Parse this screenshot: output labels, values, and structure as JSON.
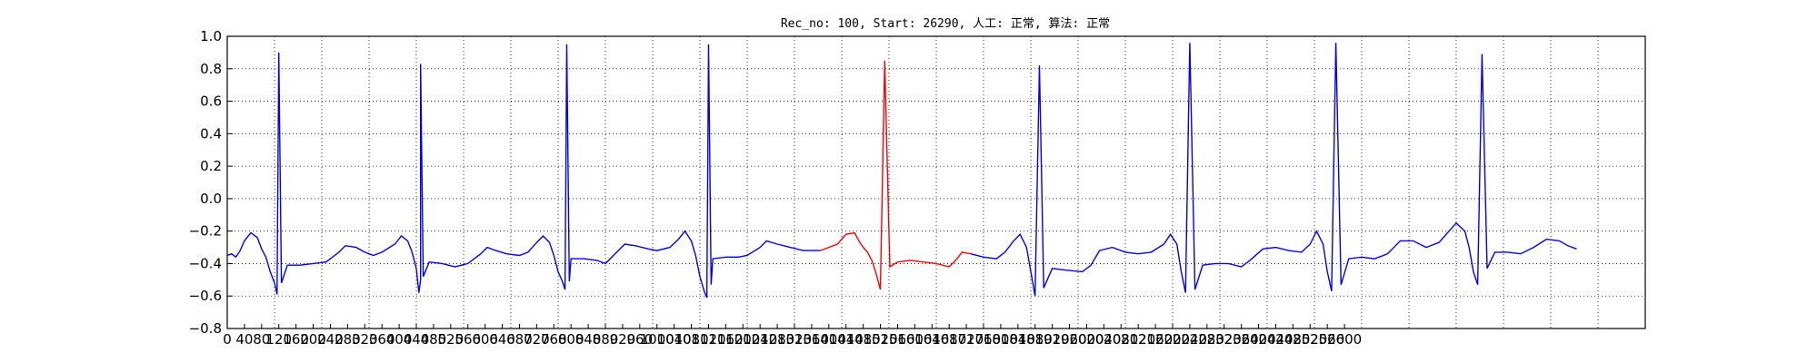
{
  "chart_data": {
    "type": "line",
    "title": "Rec_no: 100, Start: 26290, 人工: 正常, 算法: 正常",
    "xlabel": "",
    "ylabel": "",
    "xlim": [
      0,
      3300
    ],
    "ylim": [
      -0.8,
      1.0
    ],
    "grid": true,
    "y_ticks": [
      "−0.8",
      "−0.6",
      "−0.4",
      "−0.2",
      "0.0",
      "0.2",
      "0.4",
      "0.6",
      "0.8",
      "1.0"
    ],
    "x_ticks": [
      "0",
      "40",
      "80",
      "120",
      "160",
      "200",
      "240",
      "280",
      "320",
      "360",
      "400",
      "440",
      "480",
      "520",
      "560",
      "600",
      "640",
      "680",
      "720",
      "760",
      "800",
      "840",
      "880",
      "920",
      "960",
      "1000",
      "1040",
      "1080",
      "1120",
      "1160",
      "1200",
      "1240",
      "1280",
      "1320",
      "1360",
      "1400",
      "1440",
      "1480",
      "1520",
      "1560",
      "1600",
      "1640",
      "1680",
      "1720",
      "1760",
      "1800",
      "1840",
      "1880",
      "1920",
      "1960",
      "2000",
      "2040",
      "2080",
      "2120",
      "2160",
      "2200",
      "2240",
      "2280",
      "2320",
      "2360",
      "2400",
      "2440",
      "2480",
      "2520",
      "2560",
      "2600"
    ],
    "x_tick_values": [
      0,
      40,
      80,
      120,
      160,
      200,
      240,
      280,
      320,
      360,
      400,
      440,
      480,
      520,
      560,
      600,
      640,
      680,
      720,
      760,
      800,
      840,
      880,
      920,
      960,
      1000,
      1040,
      1080,
      1120,
      1160,
      1200,
      1240,
      1280,
      1320,
      1360,
      1400,
      1440,
      1480,
      1520,
      1560,
      1600,
      1640,
      1680,
      1720,
      1760,
      1800,
      1840,
      1880,
      1920,
      1960,
      2000,
      2040,
      2080,
      2120,
      2160,
      2200,
      2240,
      2280,
      2320,
      2360,
      2400,
      2440,
      2480,
      2520,
      2560,
      2600
    ],
    "x_gridlines": [
      0,
      110,
      220,
      330,
      440,
      550,
      660,
      770,
      880,
      990,
      1100,
      1210,
      1320,
      1430,
      1540,
      1650,
      1760,
      1870,
      1980,
      2090,
      2200,
      2310,
      2420,
      2530,
      2640,
      2750,
      2860,
      2970,
      3080,
      3190,
      3300
    ],
    "baseline": [
      [
        0,
        -0.35
      ],
      [
        10,
        -0.34
      ],
      [
        20,
        -0.36
      ],
      [
        30,
        -0.32
      ],
      [
        40,
        -0.26
      ],
      [
        55,
        -0.21
      ],
      [
        70,
        -0.24
      ],
      [
        80,
        -0.31
      ],
      [
        90,
        -0.36
      ],
      [
        100,
        -0.45
      ],
      [
        110,
        -0.52
      ],
      [
        140,
        -0.41
      ],
      [
        170,
        -0.41
      ],
      [
        200,
        -0.4
      ],
      [
        230,
        -0.39
      ],
      [
        260,
        -0.33
      ],
      [
        275,
        -0.29
      ],
      [
        300,
        -0.3
      ],
      [
        320,
        -0.33
      ],
      [
        340,
        -0.35
      ],
      [
        360,
        -0.33
      ],
      [
        390,
        -0.28
      ],
      [
        405,
        -0.23
      ],
      [
        420,
        -0.26
      ],
      [
        430,
        -0.33
      ],
      [
        440,
        -0.43
      ],
      [
        450,
        -0.5
      ],
      [
        470,
        -0.39
      ],
      [
        500,
        -0.4
      ],
      [
        530,
        -0.42
      ],
      [
        560,
        -0.4
      ],
      [
        590,
        -0.34
      ],
      [
        605,
        -0.3
      ],
      [
        625,
        -0.32
      ],
      [
        650,
        -0.34
      ],
      [
        680,
        -0.35
      ],
      [
        700,
        -0.33
      ],
      [
        720,
        -0.27
      ],
      [
        735,
        -0.23
      ],
      [
        750,
        -0.27
      ],
      [
        760,
        -0.35
      ],
      [
        770,
        -0.45
      ],
      [
        780,
        -0.51
      ],
      [
        800,
        -0.37
      ],
      [
        830,
        -0.37
      ],
      [
        860,
        -0.38
      ],
      [
        880,
        -0.4
      ],
      [
        910,
        -0.32
      ],
      [
        925,
        -0.28
      ],
      [
        950,
        -0.29
      ],
      [
        980,
        -0.31
      ],
      [
        1000,
        -0.32
      ],
      [
        1030,
        -0.3
      ],
      [
        1050,
        -0.25
      ],
      [
        1065,
        -0.2
      ],
      [
        1080,
        -0.26
      ],
      [
        1090,
        -0.35
      ],
      [
        1100,
        -0.48
      ],
      [
        1110,
        -0.57
      ],
      [
        1130,
        -0.37
      ],
      [
        1160,
        -0.36
      ],
      [
        1190,
        -0.36
      ],
      [
        1210,
        -0.35
      ],
      [
        1240,
        -0.3
      ],
      [
        1255,
        -0.26
      ],
      [
        1280,
        -0.28
      ],
      [
        1310,
        -0.3
      ],
      [
        1340,
        -0.32
      ]
    ],
    "beats": [
      {
        "x": 120,
        "peak": 0.9,
        "low_before": -0.59,
        "low_after": -0.52
      },
      {
        "x": 450,
        "peak": 0.83,
        "low_before": -0.58,
        "low_after": -0.48
      },
      {
        "x": 790,
        "peak": 0.95,
        "low_before": -0.56,
        "low_after": -0.51
      },
      {
        "x": 1120,
        "peak": 0.95,
        "low_before": -0.61,
        "low_after": -0.53
      }
    ],
    "highlight_segment": [
      [
        1380,
        -0.32
      ],
      [
        1400,
        -0.3
      ],
      [
        1420,
        -0.28
      ],
      [
        1440,
        -0.22
      ],
      [
        1460,
        -0.21
      ],
      [
        1470,
        -0.26
      ],
      [
        1480,
        -0.3
      ],
      [
        1490,
        -0.33
      ],
      [
        1500,
        -0.38
      ],
      [
        1510,
        -0.46
      ],
      [
        1520,
        -0.56
      ],
      [
        1530,
        0.85
      ],
      [
        1542,
        -0.42
      ],
      [
        1560,
        -0.39
      ],
      [
        1590,
        -0.38
      ],
      [
        1620,
        -0.39
      ],
      [
        1650,
        -0.4
      ],
      [
        1680,
        -0.42
      ],
      [
        1695,
        -0.38
      ],
      [
        1710,
        -0.33
      ],
      [
        1730,
        -0.34
      ]
    ],
    "baseline_after": [
      [
        1730,
        -0.34
      ],
      [
        1760,
        -0.36
      ],
      [
        1790,
        -0.37
      ],
      [
        1810,
        -0.33
      ],
      [
        1830,
        -0.26
      ],
      [
        1845,
        -0.22
      ],
      [
        1860,
        -0.3
      ],
      [
        1870,
        -0.45
      ],
      [
        1880,
        -0.6
      ],
      [
        1890,
        0.82
      ],
      [
        1900,
        -0.55
      ],
      [
        1920,
        -0.43
      ],
      [
        1950,
        -0.44
      ],
      [
        1990,
        -0.45
      ],
      [
        2010,
        -0.41
      ],
      [
        2030,
        -0.32
      ],
      [
        2060,
        -0.3
      ],
      [
        2090,
        -0.33
      ],
      [
        2120,
        -0.34
      ],
      [
        2150,
        -0.33
      ],
      [
        2180,
        -0.28
      ],
      [
        2195,
        -0.22
      ],
      [
        2210,
        -0.28
      ],
      [
        2220,
        -0.45
      ],
      [
        2230,
        -0.58
      ],
      [
        2240,
        0.96
      ],
      [
        2252,
        -0.56
      ],
      [
        2270,
        -0.41
      ],
      [
        2300,
        -0.4
      ],
      [
        2330,
        -0.4
      ],
      [
        2360,
        -0.42
      ],
      [
        2380,
        -0.38
      ],
      [
        2410,
        -0.31
      ],
      [
        2440,
        -0.3
      ],
      [
        2470,
        -0.32
      ],
      [
        2500,
        -0.33
      ],
      [
        2520,
        -0.28
      ],
      [
        2535,
        -0.2
      ],
      [
        2550,
        -0.28
      ],
      [
        2560,
        -0.45
      ],
      [
        2570,
        -0.57
      ],
      [
        2580,
        0.96
      ],
      [
        2592,
        -0.53
      ],
      [
        2610,
        -0.37
      ],
      [
        2640,
        -0.36
      ],
      [
        2670,
        -0.37
      ],
      [
        2700,
        -0.34
      ],
      [
        2730,
        -0.26
      ],
      [
        2760,
        -0.26
      ],
      [
        2790,
        -0.3
      ],
      [
        2820,
        -0.27
      ],
      [
        2840,
        -0.21
      ],
      [
        2860,
        -0.15
      ],
      [
        2880,
        -0.2
      ],
      [
        2890,
        -0.3
      ],
      [
        2900,
        -0.45
      ],
      [
        2910,
        -0.53
      ],
      [
        2920,
        0.89
      ],
      [
        2932,
        -0.43
      ],
      [
        2950,
        -0.33
      ],
      [
        2980,
        -0.33
      ],
      [
        3010,
        -0.34
      ],
      [
        3040,
        -0.3
      ],
      [
        3070,
        -0.25
      ],
      [
        3100,
        -0.26
      ],
      [
        3120,
        -0.29
      ],
      [
        3140,
        -0.31
      ]
    ]
  }
}
